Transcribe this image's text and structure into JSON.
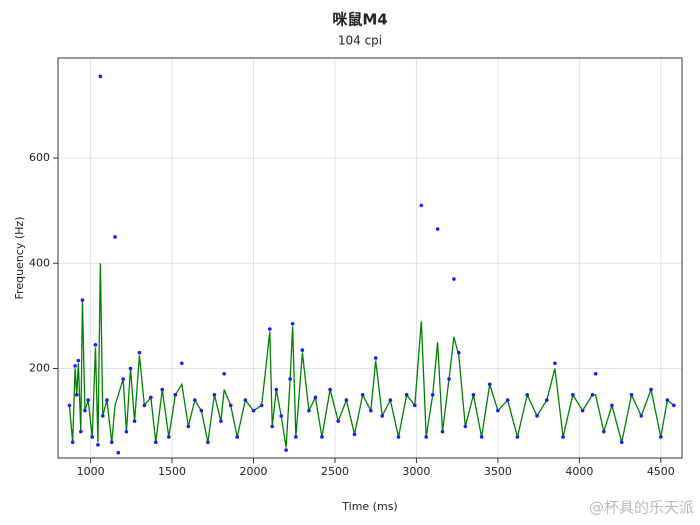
{
  "chart_data": {
    "type": "scatter",
    "title": "咪鼠M4",
    "subtitle": "104 cpi",
    "x_label": "Time (ms)",
    "y_label": "Frequency (Hz)",
    "watermark": "@杯具的乐天派",
    "x": [
      870,
      890,
      905,
      915,
      925,
      940,
      950,
      965,
      985,
      1010,
      1030,
      1045,
      1060,
      1075,
      1100,
      1130,
      1150,
      1170,
      1200,
      1220,
      1245,
      1270,
      1300,
      1330,
      1370,
      1400,
      1440,
      1480,
      1520,
      1560,
      1600,
      1640,
      1680,
      1720,
      1760,
      1800,
      1820,
      1860,
      1900,
      1950,
      2000,
      2050,
      2100,
      2115,
      2140,
      2170,
      2200,
      2225,
      2240,
      2260,
      2300,
      2340,
      2380,
      2420,
      2470,
      2520,
      2570,
      2620,
      2670,
      2720,
      2750,
      2790,
      2840,
      2890,
      2940,
      2990,
      3030,
      3060,
      3100,
      3130,
      3160,
      3200,
      3230,
      3260,
      3300,
      3350,
      3400,
      3450,
      3500,
      3560,
      3620,
      3680,
      3740,
      3800,
      3850,
      3900,
      3960,
      4020,
      4080,
      4100,
      4150,
      4200,
      4260,
      4320,
      4380,
      4440,
      4500,
      4540,
      4580
    ],
    "series": [
      {
        "style": "line",
        "color": "#008000",
        "values": [
          130,
          60,
          200,
          150,
          210,
          80,
          330,
          120,
          140,
          70,
          240,
          60,
          400,
          110,
          140,
          60,
          130,
          150,
          180,
          80,
          200,
          100,
          225,
          130,
          145,
          60,
          160,
          70,
          150,
          170,
          90,
          140,
          120,
          60,
          150,
          100,
          160,
          130,
          70,
          140,
          120,
          130,
          270,
          90,
          160,
          110,
          50,
          180,
          280,
          70,
          230,
          120,
          145,
          70,
          160,
          100,
          140,
          75,
          150,
          120,
          215,
          110,
          140,
          70,
          150,
          130,
          290,
          70,
          150,
          250,
          80,
          180,
          260,
          225,
          90,
          150,
          70,
          170,
          120,
          140,
          70,
          150,
          110,
          140,
          200,
          70,
          150,
          120,
          150,
          150,
          80,
          130,
          60,
          150,
          110,
          160,
          70,
          140,
          130
        ]
      },
      {
        "style": "points",
        "color": "#1a1aff",
        "values": [
          130,
          60,
          205,
          150,
          215,
          80,
          330,
          120,
          140,
          70,
          245,
          55,
          755,
          110,
          140,
          60,
          450,
          40,
          180,
          80,
          200,
          100,
          230,
          130,
          145,
          60,
          160,
          70,
          150,
          210,
          90,
          140,
          120,
          60,
          150,
          100,
          190,
          130,
          70,
          140,
          120,
          130,
          275,
          90,
          160,
          110,
          45,
          180,
          285,
          70,
          235,
          120,
          145,
          70,
          160,
          100,
          140,
          75,
          150,
          120,
          220,
          110,
          140,
          70,
          150,
          130,
          510,
          70,
          150,
          465,
          80,
          180,
          370,
          230,
          90,
          150,
          70,
          170,
          120,
          140,
          70,
          150,
          110,
          140,
          210,
          70,
          150,
          120,
          150,
          190,
          80,
          130,
          60,
          150,
          110,
          160,
          70,
          140,
          130
        ]
      }
    ],
    "xlim": [
      800,
      4630
    ],
    "ylim": [
      30,
      790
    ],
    "xticks": [
      1000,
      1500,
      2000,
      2500,
      3000,
      3500,
      4000,
      4500
    ],
    "yticks": [
      200,
      400,
      600
    ],
    "grid": true
  }
}
